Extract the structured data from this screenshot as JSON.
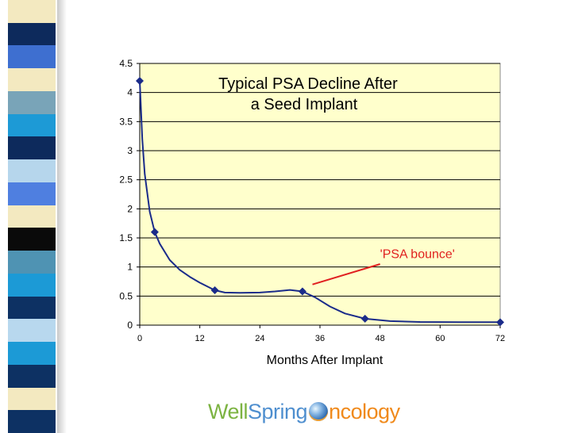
{
  "side_strip_colors": [
    "#f3e9c0",
    "#0d2a5c",
    "#3e6fd0",
    "#f3e9c0",
    "#79a4b8",
    "#1d9ad6",
    "#0d2a5c",
    "#b6d6ec",
    "#4f7fe0",
    "#f3e9c0",
    "#0a0a0a",
    "#4f93b3",
    "#1c9ad6",
    "#0d3163",
    "#b8d8ee",
    "#1c9ad6",
    "#0d3163",
    "#f3e9c0",
    "#0d3163"
  ],
  "chart_data": {
    "type": "line",
    "title_lines": [
      "Typical PSA Decline After",
      "a Seed Implant"
    ],
    "xlabel": "Months After Implant",
    "ylabel": "",
    "xlim": [
      0,
      72
    ],
    "ylim": [
      0,
      4.5
    ],
    "x_ticks": [
      0,
      12,
      24,
      36,
      48,
      60,
      72
    ],
    "y_ticks": [
      "0",
      "0.5",
      "1",
      "1.5",
      "2",
      "2.5",
      "3",
      "3.5",
      "4",
      "4.5"
    ],
    "grid": true,
    "plot_background": "#ffffcc",
    "series": [
      {
        "color": "#1a2b8a",
        "points": [
          [
            0,
            4.2
          ],
          [
            3,
            1.6
          ],
          [
            15,
            0.6
          ],
          [
            32.5,
            0.58
          ],
          [
            45,
            0.11
          ],
          [
            72,
            0.05
          ]
        ]
      }
    ],
    "curve": [
      [
        0,
        4.2
      ],
      [
        0.5,
        3.2
      ],
      [
        1,
        2.6
      ],
      [
        2,
        1.95
      ],
      [
        3,
        1.6
      ],
      [
        4,
        1.4
      ],
      [
        6,
        1.12
      ],
      [
        8,
        0.95
      ],
      [
        10,
        0.83
      ],
      [
        12,
        0.73
      ],
      [
        15,
        0.6
      ],
      [
        17,
        0.56
      ],
      [
        20,
        0.555
      ],
      [
        24,
        0.56
      ],
      [
        27,
        0.58
      ],
      [
        30,
        0.605
      ],
      [
        32.5,
        0.58
      ],
      [
        35,
        0.48
      ],
      [
        38,
        0.32
      ],
      [
        41,
        0.2
      ],
      [
        45,
        0.11
      ],
      [
        50,
        0.07
      ],
      [
        56,
        0.055
      ],
      [
        64,
        0.05
      ],
      [
        72,
        0.05
      ]
    ],
    "annotation": {
      "text": "'PSA bounce'",
      "color": "#e02020",
      "x": 48,
      "y": 1.15,
      "arrow_from": [
        48,
        1.05
      ],
      "arrow_to": [
        34.5,
        0.7
      ]
    }
  },
  "logo": {
    "well": "Well",
    "spring": "Spring",
    "ncology": "ncology",
    "orb_name": "globe-o-icon"
  }
}
